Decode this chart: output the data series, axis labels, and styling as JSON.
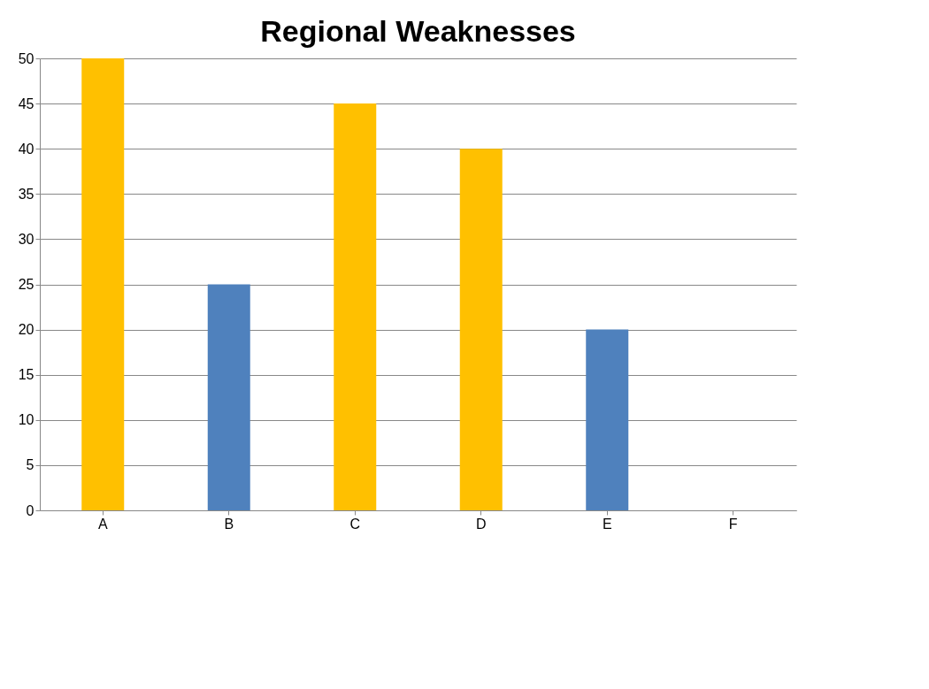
{
  "chart_data": {
    "type": "bar",
    "title": "Regional Weaknesses",
    "categories": [
      "A",
      "B",
      "C",
      "D",
      "E",
      "F"
    ],
    "values": [
      50,
      25,
      45,
      40,
      20,
      0
    ],
    "colors": [
      "#ffc000",
      "#4f81bd",
      "#ffc000",
      "#ffc000",
      "#4f81bd",
      "#4f81bd"
    ],
    "ylim": [
      0,
      50
    ],
    "yticks": [
      0,
      5,
      10,
      15,
      20,
      25,
      30,
      35,
      40,
      45,
      50
    ],
    "grid": "y"
  }
}
